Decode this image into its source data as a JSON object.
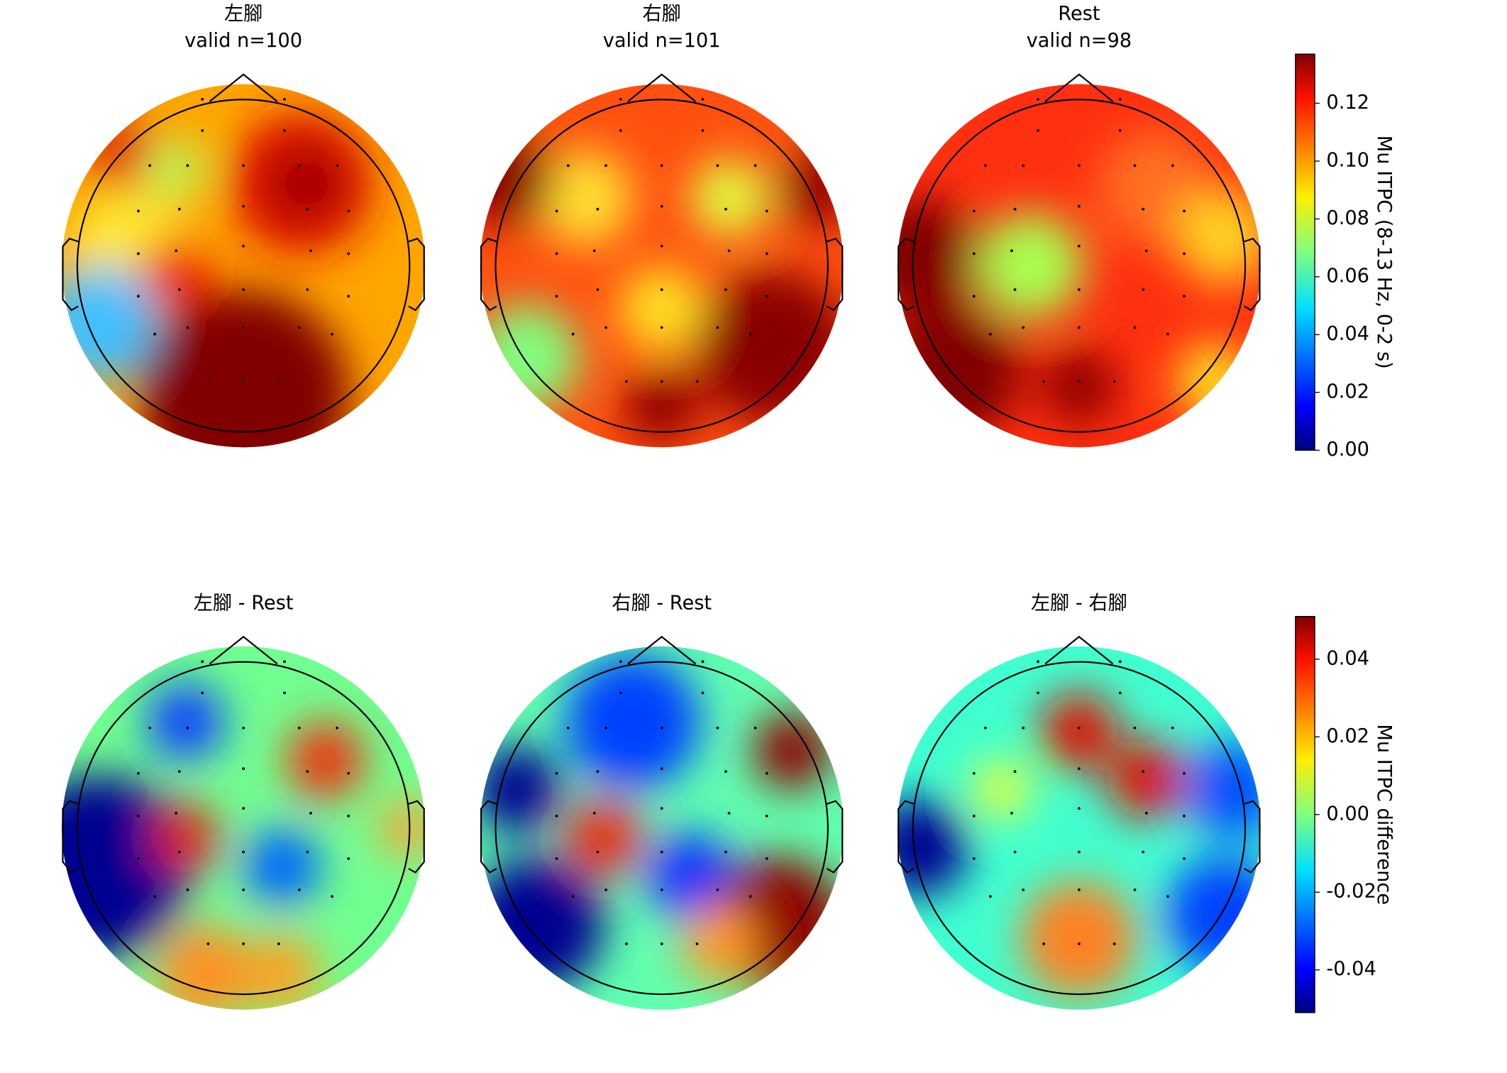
{
  "chart_data": [
    {
      "type": "topomap",
      "title": "左腳",
      "subtitle": "valid n=100"
    },
    {
      "type": "topomap",
      "title": "右腳",
      "subtitle": "valid n=101"
    },
    {
      "type": "topomap",
      "title": "Rest",
      "subtitle": "valid n=98"
    },
    {
      "type": "topomap",
      "title": "左腳 - Rest"
    },
    {
      "type": "topomap",
      "title": "右腳 - Rest"
    },
    {
      "type": "topomap",
      "title": "左腳 - 右腳"
    },
    {
      "type": "colorbar",
      "label": "Mu ITPC (8-13 Hz, 0-2 s)",
      "ylim": [
        0,
        0.137
      ],
      "yticks": [
        {
          "value": 0,
          "label": "0.00"
        },
        {
          "value": 0.02,
          "label": "0.02"
        },
        {
          "value": 0.04,
          "label": "0.04"
        },
        {
          "value": 0.06,
          "label": "0.06"
        },
        {
          "value": 0.08,
          "label": "0.08"
        },
        {
          "value": 0.1,
          "label": "0.10"
        },
        {
          "value": 0.12,
          "label": "0.12"
        }
      ]
    },
    {
      "type": "colorbar",
      "label": "Mu ITPC difference",
      "ylim": [
        -0.051,
        0.051
      ],
      "yticks": [
        {
          "value": -0.04,
          "label": "-0.04"
        },
        {
          "value": -0.02,
          "label": "-0.02"
        },
        {
          "value": 0,
          "label": "0.00"
        },
        {
          "value": 0.02,
          "label": "0.02"
        },
        {
          "value": 0.04,
          "label": "0.04"
        }
      ]
    }
  ]
}
